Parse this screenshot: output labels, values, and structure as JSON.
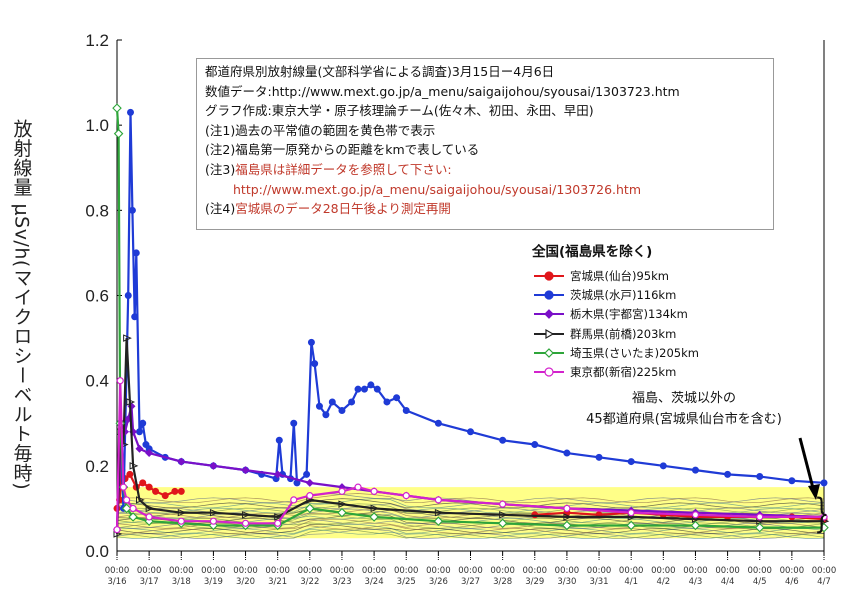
{
  "chart_data": {
    "type": "line",
    "title": "都道府県別放射線量(文部科学省による調査)3月15日ー4月6日",
    "ylabel": "放射線量 μSv/h(マイクロシーベルト毎時)",
    "xlabel": "",
    "ylim": [
      0,
      1.2
    ],
    "y_ticks": [
      "0.0",
      "0.2",
      "0.4",
      "0.6",
      "0.8",
      "1.0",
      "1.2"
    ],
    "x_ticks": [
      {
        "time": "00:00",
        "date": "3/16"
      },
      {
        "time": "00:00",
        "date": "3/17"
      },
      {
        "time": "00:00",
        "date": "3/18"
      },
      {
        "time": "00:00",
        "date": "3/19"
      },
      {
        "time": "00:00",
        "date": "3/20"
      },
      {
        "time": "00:00",
        "date": "3/21"
      },
      {
        "time": "00:00",
        "date": "3/22"
      },
      {
        "time": "00:00",
        "date": "3/23"
      },
      {
        "time": "00:00",
        "date": "3/24"
      },
      {
        "time": "00:00",
        "date": "3/25"
      },
      {
        "time": "00:00",
        "date": "3/26"
      },
      {
        "time": "00:00",
        "date": "3/27"
      },
      {
        "time": "00:00",
        "date": "3/28"
      },
      {
        "time": "00:00",
        "date": "3/29"
      },
      {
        "time": "00:00",
        "date": "3/30"
      },
      {
        "time": "00:00",
        "date": "3/31"
      },
      {
        "time": "00:00",
        "date": "4/1"
      },
      {
        "time": "00:00",
        "date": "4/2"
      },
      {
        "time": "00:00",
        "date": "4/3"
      },
      {
        "time": "00:00",
        "date": "4/4"
      },
      {
        "time": "00:00",
        "date": "4/5"
      },
      {
        "time": "00:00",
        "date": "4/6"
      },
      {
        "time": "00:00",
        "date": "4/7"
      }
    ],
    "background_band": {
      "from": 0.03,
      "to": 0.15,
      "color": "#ffff88"
    },
    "series": [
      {
        "name": "宮城県(仙台)95km",
        "color": "#e0161b",
        "marker": "circle-filled",
        "points": [
          [
            0,
            0.1
          ],
          [
            0.08,
            0.12
          ],
          [
            0.15,
            0.19
          ],
          [
            0.25,
            0.17
          ],
          [
            0.4,
            0.18
          ],
          [
            0.6,
            0.15
          ],
          [
            0.8,
            0.16
          ],
          [
            1.0,
            0.15
          ],
          [
            1.2,
            0.14
          ],
          [
            1.5,
            0.13
          ],
          [
            1.8,
            0.14
          ],
          [
            2.0,
            0.14
          ]
        ],
        "points2": [
          [
            13.0,
            0.085
          ],
          [
            14,
            0.09
          ],
          [
            15,
            0.085
          ],
          [
            16,
            0.09
          ],
          [
            17,
            0.085
          ],
          [
            18,
            0.08
          ],
          [
            19,
            0.08
          ],
          [
            20,
            0.08
          ],
          [
            21,
            0.08
          ],
          [
            22,
            0.075
          ]
        ]
      },
      {
        "name": "茨城県(水戸)116km",
        "color": "#1f3bd6",
        "marker": "circle-filled",
        "points": [
          [
            0,
            0.05
          ],
          [
            0.1,
            0.3
          ],
          [
            0.2,
            0.1
          ],
          [
            0.35,
            0.6
          ],
          [
            0.42,
            1.03
          ],
          [
            0.48,
            0.8
          ],
          [
            0.55,
            0.55
          ],
          [
            0.6,
            0.7
          ],
          [
            0.7,
            0.28
          ],
          [
            0.8,
            0.3
          ],
          [
            0.9,
            0.25
          ],
          [
            1.0,
            0.24
          ],
          [
            1.5,
            0.22
          ],
          [
            2,
            0.21
          ],
          [
            3,
            0.2
          ],
          [
            4,
            0.19
          ],
          [
            4.5,
            0.18
          ],
          [
            4.95,
            0.17
          ],
          [
            5.05,
            0.26
          ],
          [
            5.15,
            0.18
          ],
          [
            5.4,
            0.17
          ],
          [
            5.5,
            0.3
          ],
          [
            5.6,
            0.16
          ],
          [
            5.9,
            0.18
          ],
          [
            6.05,
            0.49
          ],
          [
            6.15,
            0.44
          ],
          [
            6.3,
            0.34
          ],
          [
            6.5,
            0.32
          ],
          [
            6.7,
            0.35
          ],
          [
            7.0,
            0.33
          ],
          [
            7.3,
            0.35
          ],
          [
            7.5,
            0.38
          ],
          [
            7.7,
            0.38
          ],
          [
            7.9,
            0.39
          ],
          [
            8.1,
            0.38
          ],
          [
            8.4,
            0.35
          ],
          [
            8.7,
            0.36
          ],
          [
            9,
            0.33
          ],
          [
            10,
            0.3
          ],
          [
            11,
            0.28
          ],
          [
            12,
            0.26
          ],
          [
            13,
            0.25
          ],
          [
            14,
            0.23
          ],
          [
            15,
            0.22
          ],
          [
            16,
            0.21
          ],
          [
            17,
            0.2
          ],
          [
            18,
            0.19
          ],
          [
            19,
            0.18
          ],
          [
            20,
            0.175
          ],
          [
            21,
            0.165
          ],
          [
            22,
            0.16
          ]
        ]
      },
      {
        "name": "栃木県(宇都宮)134km",
        "color": "#7a10c8",
        "marker": "diamond-filled",
        "points": [
          [
            0,
            0.05
          ],
          [
            0.15,
            0.3
          ],
          [
            0.25,
            0.28
          ],
          [
            0.35,
            0.31
          ],
          [
            0.45,
            0.34
          ],
          [
            0.5,
            0.28
          ],
          [
            0.7,
            0.24
          ],
          [
            1,
            0.23
          ],
          [
            2,
            0.21
          ],
          [
            3,
            0.2
          ],
          [
            4,
            0.19
          ],
          [
            5,
            0.18
          ],
          [
            6,
            0.16
          ],
          [
            7,
            0.15
          ],
          [
            8,
            0.14
          ],
          [
            9,
            0.13
          ],
          [
            10,
            0.12
          ],
          [
            12,
            0.11
          ],
          [
            14,
            0.1
          ],
          [
            16,
            0.095
          ],
          [
            18,
            0.09
          ],
          [
            20,
            0.085
          ],
          [
            22,
            0.08
          ]
        ]
      },
      {
        "name": "群馬県(前橋)203km",
        "color": "#222222",
        "marker": "triangle-open",
        "points": [
          [
            0,
            0.04
          ],
          [
            0.1,
            0.28
          ],
          [
            0.2,
            0.25
          ],
          [
            0.3,
            0.5
          ],
          [
            0.4,
            0.35
          ],
          [
            0.5,
            0.2
          ],
          [
            0.7,
            0.12
          ],
          [
            1,
            0.1
          ],
          [
            2,
            0.09
          ],
          [
            3,
            0.09
          ],
          [
            4,
            0.085
          ],
          [
            5,
            0.08
          ],
          [
            6,
            0.12
          ],
          [
            7,
            0.11
          ],
          [
            8,
            0.1
          ],
          [
            10,
            0.09
          ],
          [
            12,
            0.085
          ],
          [
            14,
            0.08
          ],
          [
            16,
            0.08
          ],
          [
            18,
            0.075
          ],
          [
            20,
            0.07
          ],
          [
            22,
            0.07
          ]
        ]
      },
      {
        "name": "埼玉県(さいたま)205km",
        "color": "#2ea53a",
        "marker": "diamond-open",
        "points": [
          [
            0,
            1.04
          ],
          [
            0.05,
            0.98
          ],
          [
            0.1,
            0.3
          ],
          [
            0.2,
            0.15
          ],
          [
            0.3,
            0.1
          ],
          [
            0.5,
            0.08
          ],
          [
            1,
            0.07
          ],
          [
            2,
            0.065
          ],
          [
            3,
            0.06
          ],
          [
            4,
            0.06
          ],
          [
            5,
            0.06
          ],
          [
            6,
            0.1
          ],
          [
            7,
            0.09
          ],
          [
            8,
            0.08
          ],
          [
            10,
            0.07
          ],
          [
            12,
            0.065
          ],
          [
            14,
            0.06
          ],
          [
            16,
            0.06
          ],
          [
            18,
            0.06
          ],
          [
            20,
            0.055
          ],
          [
            22,
            0.055
          ]
        ]
      },
      {
        "name": "東京都(新宿)225km",
        "color": "#d322cc",
        "marker": "circle-open",
        "points": [
          [
            0,
            0.05
          ],
          [
            0.1,
            0.4
          ],
          [
            0.2,
            0.15
          ],
          [
            0.3,
            0.12
          ],
          [
            0.5,
            0.1
          ],
          [
            1,
            0.08
          ],
          [
            2,
            0.07
          ],
          [
            3,
            0.07
          ],
          [
            4,
            0.065
          ],
          [
            5,
            0.065
          ],
          [
            5.5,
            0.12
          ],
          [
            6,
            0.13
          ],
          [
            7,
            0.14
          ],
          [
            7.5,
            0.15
          ],
          [
            8,
            0.14
          ],
          [
            9,
            0.13
          ],
          [
            10,
            0.12
          ],
          [
            12,
            0.11
          ],
          [
            14,
            0.1
          ],
          [
            16,
            0.09
          ],
          [
            18,
            0.085
          ],
          [
            20,
            0.08
          ],
          [
            22,
            0.08
          ]
        ]
      }
    ]
  },
  "notes": {
    "line1": "都道府県別放射線量(文部科学省による調査)3月15日ー4月6日",
    "line2": "数値データ:http://www.mext.go.jp/a_menu/saigaijohou/syousai/1303723.htm",
    "line3": "グラフ作成:東京大学・原子核理論チーム(佐々木、初田、永田、早田)",
    "line4": "(注1)過去の平常値の範囲を黄色帯で表示",
    "line5": "(注2)福島第一原発からの距離をkmで表している",
    "line6_prefix": "(注3)",
    "line6_red": "福島県は詳細データを参照して下さい:",
    "line7_red": "http://www.mext.go.jp/a_menu/saigaijohou/syousai/1303726.htm",
    "line8_prefix": "(注4)",
    "line8_red": "宮城県のデータ28日午後より測定再開"
  },
  "legend": {
    "title": "全国(福島県を除く)",
    "items": [
      {
        "label": "宮城県(仙台)95km",
        "color": "#e0161b",
        "marker": "circle-filled"
      },
      {
        "label": "茨城県(水戸)116km",
        "color": "#1f3bd6",
        "marker": "circle-filled"
      },
      {
        "label": "栃木県(宇都宮)134km",
        "color": "#7a10c8",
        "marker": "diamond-filled"
      },
      {
        "label": "群馬県(前橋)203km",
        "color": "#222222",
        "marker": "triangle-open"
      },
      {
        "label": "埼玉県(さいたま)205km",
        "color": "#2ea53a",
        "marker": "diamond-open"
      },
      {
        "label": "東京都(新宿)225km",
        "color": "#d322cc",
        "marker": "circle-open"
      }
    ]
  },
  "annotation": {
    "line1": "福島、茨城以外の",
    "line2": "45都道府県(宮城県仙台市を含む)"
  },
  "bracket": "}"
}
